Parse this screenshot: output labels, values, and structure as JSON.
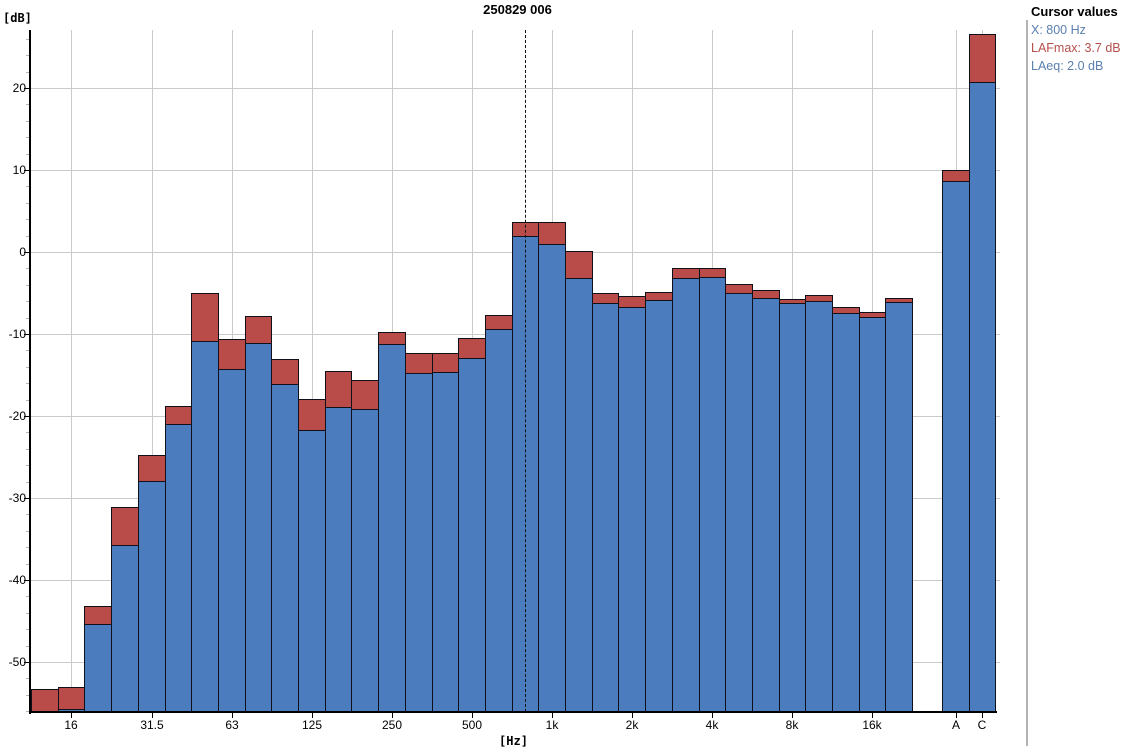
{
  "title": "250829 006",
  "cursor_panel": {
    "title": "Cursor values",
    "x_line": "X: 800 Hz",
    "lafmax_line": "LAFmax: 3.7 dB",
    "laeq_line": "LAeq: 2.0 dB",
    "x_color": "#5b80ae",
    "lafmax_color": "#b5504c",
    "laeq_color": "#5b80ae"
  },
  "chart_data": {
    "type": "bar",
    "subtype": "stacked_third_octave_spectrum",
    "title": "250829 006",
    "xlabel": "[Hz]",
    "ylabel": "[dB]",
    "ylim": [
      -56.2,
      27.2
    ],
    "y_ticks": [
      20,
      10,
      0,
      -10,
      -20,
      -30,
      -40,
      -50
    ],
    "grid": true,
    "legend_position": "none",
    "categories": [
      "12.5",
      "16",
      "20",
      "25",
      "31.5",
      "40",
      "50",
      "63",
      "80",
      "100",
      "125",
      "160",
      "200",
      "250",
      "315",
      "400",
      "500",
      "630",
      "800",
      "1k",
      "1.25k",
      "1.6k",
      "2k",
      "2.5k",
      "3.15k",
      "4k",
      "5k",
      "6.3k",
      "8k",
      "10k",
      "12.5k",
      "16k",
      "20k",
      "A",
      "C"
    ],
    "x_tick_labels": [
      "16",
      "31.5",
      "63",
      "125",
      "250",
      "500",
      "1k",
      "2k",
      "4k",
      "8k",
      "16k",
      "A",
      "C"
    ],
    "x_tick_indices": [
      1,
      4,
      7,
      10,
      13,
      16,
      19,
      22,
      25,
      28,
      31,
      33,
      34
    ],
    "series": [
      {
        "name": "LAFmax",
        "color": "#b94b49",
        "values": [
          -53.3,
          -53.0,
          -43.2,
          -31.1,
          -24.8,
          -18.8,
          -5.0,
          -10.6,
          -7.8,
          -13.0,
          -17.9,
          -14.5,
          -15.6,
          -9.8,
          -12.3,
          -12.3,
          -10.5,
          -7.7,
          3.7,
          3.7,
          0.1,
          -5.0,
          -5.4,
          -4.9,
          -2.0,
          -2.0,
          -3.9,
          -4.6,
          -5.7,
          -5.2,
          -6.7,
          -7.3,
          -5.6,
          10.0,
          26.6
        ]
      },
      {
        "name": "LAeq",
        "color": "#4a7cbe",
        "values": [
          -56.5,
          -55.7,
          -45.4,
          -35.7,
          -27.9,
          -21.0,
          -10.9,
          -14.3,
          -11.1,
          -16.1,
          -21.7,
          -18.9,
          -19.1,
          -11.2,
          -14.8,
          -14.6,
          -12.9,
          -9.4,
          2.0,
          1.0,
          -3.2,
          -6.2,
          -6.7,
          -5.9,
          -3.2,
          -3.0,
          -5.0,
          -5.6,
          -6.2,
          -6.0,
          -7.4,
          -7.9,
          -6.1,
          8.7,
          20.7
        ]
      }
    ],
    "cursor": {
      "index": 18,
      "x_value": "800 Hz",
      "LAFmax_dB": 3.7,
      "LAeq_dB": 2.0
    }
  }
}
